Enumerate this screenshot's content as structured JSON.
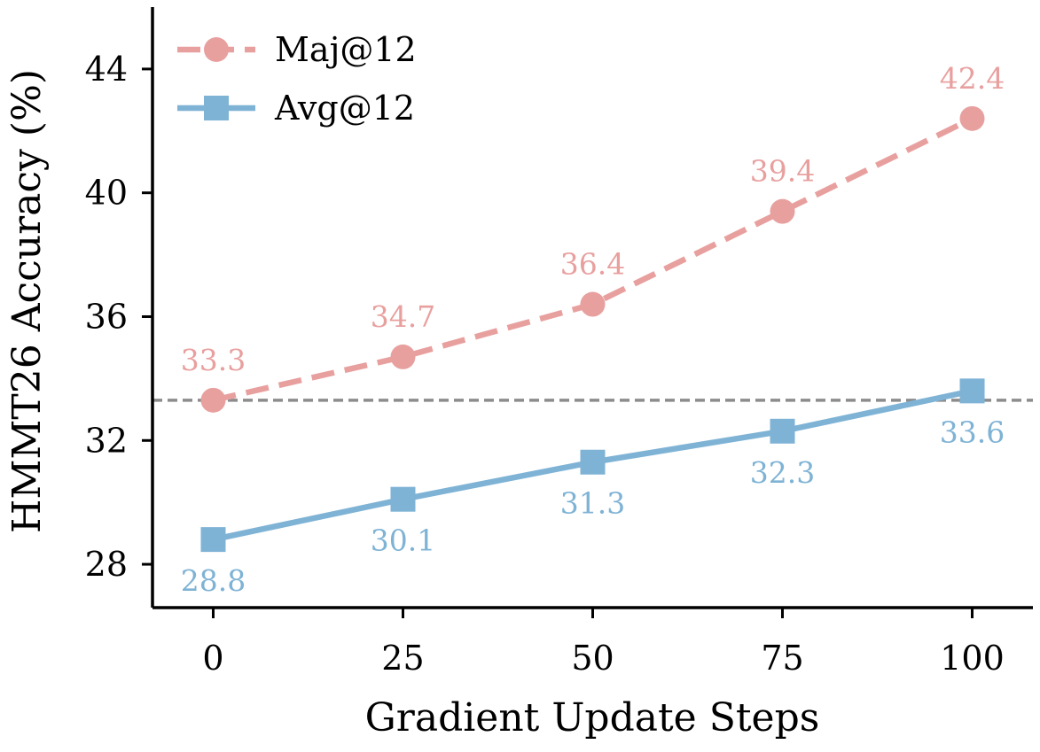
{
  "chart_data": {
    "type": "line",
    "title": "",
    "xlabel": "Gradient Update Steps",
    "ylabel": "HMMT26 Accuracy (%)",
    "x": [
      0,
      25,
      50,
      75,
      100
    ],
    "xticks": [
      0,
      25,
      50,
      75,
      100
    ],
    "yticks": [
      28,
      32,
      36,
      40,
      44
    ],
    "xlim": [
      -8,
      108
    ],
    "ylim": [
      26.6,
      46
    ],
    "grid": false,
    "legend_position": "top-left",
    "reference_line": {
      "y": 33.3,
      "style": "dashed",
      "color": "#8c8c8c"
    },
    "series": [
      {
        "name": "Maj@12",
        "values": [
          33.3,
          34.7,
          36.4,
          39.4,
          42.4
        ],
        "labels": [
          "33.3",
          "34.7",
          "36.4",
          "39.4",
          "42.4"
        ],
        "color": "#e8a09f",
        "marker": "circle",
        "line_style": "dashed",
        "label_position": "above"
      },
      {
        "name": "Avg@12",
        "values": [
          28.8,
          30.1,
          31.3,
          32.3,
          33.6
        ],
        "labels": [
          "28.8",
          "30.1",
          "31.3",
          "32.3",
          "33.6"
        ],
        "color": "#7fb3d5",
        "marker": "square",
        "line_style": "solid",
        "label_position": "below"
      }
    ]
  }
}
